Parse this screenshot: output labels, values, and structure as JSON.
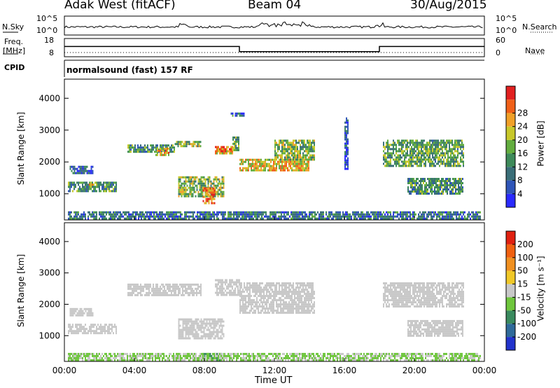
{
  "header": {
    "station": "Adak West (fitACF)",
    "beam": "Beam 04",
    "date": "30/Aug/2015"
  },
  "left_labels": {
    "nsky": "N.Sky",
    "freq_line1": "Freq.",
    "freq_line2": "[MHz]",
    "cpid": "CPID"
  },
  "right_labels": {
    "nsearch": "N.Search",
    "nave": "Nave"
  },
  "cpid_text": "normalsound (fast) 157 RF",
  "power_colorbar": {
    "title": "Power [dB]",
    "ticks": [
      "4",
      "8",
      "12",
      "16",
      "20",
      "24",
      "28"
    ],
    "colors": [
      "#2a2aff",
      "#2f55b8",
      "#3a6e78",
      "#3e8a5a",
      "#63ad3f",
      "#c8c82a",
      "#f0a028",
      "#f06018",
      "#e22020"
    ]
  },
  "velocity_colorbar": {
    "title": "Velocity [m s⁻¹]",
    "ticks": [
      "200",
      "100",
      "50",
      "15",
      "-15",
      "-50",
      "-100",
      "-200"
    ],
    "colors": [
      "#2233cc",
      "#2f6a9a",
      "#3a8a5e",
      "#6ec63c",
      "#c8c8c8",
      "#f0c828",
      "#f09020",
      "#f06010",
      "#e02010"
    ]
  },
  "chart_data": [
    {
      "type": "line",
      "title": "N.Sky / N.Search",
      "ylabels": [
        "10^5",
        "10^0"
      ],
      "y2labels": [
        "10^5",
        "10^0"
      ]
    },
    {
      "type": "line",
      "ylabel": "Freq. [MHz]",
      "ylim": [
        8,
        18
      ],
      "y2label": "Nave",
      "y2lim": [
        0,
        60
      ],
      "yticks": [
        "18",
        "8"
      ],
      "y2ticks": [
        "60",
        "0"
      ],
      "x": [
        "00:00",
        "10:00",
        "10:00",
        "18:00",
        "18:00",
        "24:00"
      ],
      "freq": [
        13.6,
        13.6,
        10.8,
        10.8,
        13.6,
        13.6
      ]
    },
    {
      "type": "heatmap",
      "name": "power",
      "ylabel": "Slant Range [km]",
      "ylim": [
        180,
        4600
      ],
      "yticks": [
        "1000",
        "2000",
        "3000",
        "4000"
      ],
      "xlim": [
        "00:00",
        "24:00"
      ],
      "xticks": [
        "00:00",
        "04:00",
        "08:00",
        "12:00",
        "16:00",
        "20:00",
        "00:00"
      ],
      "regions": [
        {
          "t": [
            0.3,
            1.6
          ],
          "r": [
            1660,
            1880
          ],
          "v": 6
        },
        {
          "t": [
            0.2,
            3.0
          ],
          "r": [
            1080,
            1380
          ],
          "v": 12
        },
        {
          "t": [
            1.4,
            1.7
          ],
          "r": [
            1200,
            1320
          ],
          "v": 20
        },
        {
          "t": [
            3.6,
            6.3
          ],
          "r": [
            2350,
            2550
          ],
          "v": 12
        },
        {
          "t": [
            5.2,
            6.0
          ],
          "r": [
            2250,
            2450
          ],
          "v": 22
        },
        {
          "t": [
            6.3,
            7.8
          ],
          "r": [
            2520,
            2660
          ],
          "v": 16
        },
        {
          "t": [
            6.5,
            9.1
          ],
          "r": [
            900,
            1550
          ],
          "v": 16
        },
        {
          "t": [
            7.9,
            8.6
          ],
          "r": [
            700,
            1200
          ],
          "v": 25
        },
        {
          "t": [
            8.6,
            9.6
          ],
          "r": [
            2290,
            2500
          ],
          "v": 24
        },
        {
          "t": [
            9.6,
            10.0
          ],
          "r": [
            2400,
            2800
          ],
          "v": 14
        },
        {
          "t": [
            9.5,
            10.3
          ],
          "r": [
            3450,
            3550
          ],
          "v": 8
        },
        {
          "t": [
            10.0,
            14.0
          ],
          "r": [
            1750,
            2100
          ],
          "v": 21
        },
        {
          "t": [
            12.0,
            14.3
          ],
          "r": [
            2100,
            2700
          ],
          "v": 16
        },
        {
          "t": [
            16.0,
            16.2
          ],
          "r": [
            1800,
            3400
          ],
          "v": 6
        },
        {
          "t": [
            18.2,
            22.8
          ],
          "r": [
            1900,
            2700
          ],
          "v": 14
        },
        {
          "t": [
            19.6,
            22.8
          ],
          "r": [
            1000,
            1500
          ],
          "v": 12
        },
        {
          "t": [
            0.2,
            23.8
          ],
          "r": [
            200,
            450
          ],
          "v": 9
        }
      ]
    },
    {
      "type": "heatmap",
      "name": "velocity",
      "ylabel": "Slant Range [km]",
      "ylim": [
        180,
        4600
      ],
      "yticks": [
        "1000",
        "2000",
        "3000",
        "4000"
      ],
      "xlabel": "Time UT",
      "xlim": [
        "00:00",
        "24:00"
      ],
      "xticks": [
        "00:00",
        "04:00",
        "08:00",
        "12:00",
        "16:00",
        "20:00",
        "00:00"
      ],
      "regions": [
        {
          "t": [
            0.3,
            1.6
          ],
          "r": [
            1660,
            1880
          ],
          "v": 0
        },
        {
          "t": [
            0.2,
            3.0
          ],
          "r": [
            1080,
            1380
          ],
          "v": 0
        },
        {
          "t": [
            3.6,
            7.8
          ],
          "r": [
            2300,
            2660
          ],
          "v": 0
        },
        {
          "t": [
            6.5,
            9.1
          ],
          "r": [
            900,
            1550
          ],
          "v": 0
        },
        {
          "t": [
            7.9,
            9.0
          ],
          "r": [
            200,
            450
          ],
          "v": -120
        },
        {
          "t": [
            8.6,
            10.0
          ],
          "r": [
            2290,
            2800
          ],
          "v": 0
        },
        {
          "t": [
            10.0,
            14.3
          ],
          "r": [
            1750,
            2700
          ],
          "v": 0
        },
        {
          "t": [
            18.2,
            22.8
          ],
          "r": [
            1900,
            2700
          ],
          "v": 0
        },
        {
          "t": [
            19.6,
            22.8
          ],
          "r": [
            1000,
            1500
          ],
          "v": 0
        },
        {
          "t": [
            0.2,
            23.8
          ],
          "r": [
            200,
            450
          ],
          "v": -30
        }
      ]
    }
  ]
}
